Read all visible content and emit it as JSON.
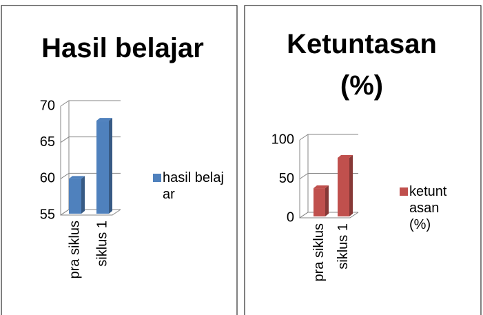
{
  "chart_data": [
    {
      "type": "bar3d",
      "title": "Hasil belajar",
      "categories": [
        "pra siklus",
        "siklus 1"
      ],
      "series": [
        {
          "name": "hasil belajar",
          "color": "#4f81bd",
          "values": [
            60,
            68
          ]
        }
      ],
      "ylim": [
        55,
        70
      ],
      "yticks": [
        55,
        60,
        65,
        70
      ],
      "grid": true,
      "legend": "right"
    },
    {
      "type": "bar3d",
      "title": "Ketuntasan (%)",
      "categories": [
        "pra siklus",
        "siklus 1"
      ],
      "series": [
        {
          "name": "ketuntasan (%)",
          "color": "#c0504d",
          "values": [
            38,
            77
          ]
        }
      ],
      "ylim": [
        0,
        100
      ],
      "yticks": [
        0,
        50,
        100
      ],
      "grid": true,
      "legend": "right"
    }
  ]
}
